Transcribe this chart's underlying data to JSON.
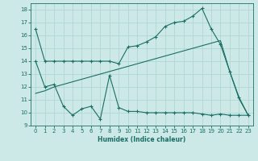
{
  "xlabel": "Humidex (Indice chaleur)",
  "bg_color": "#cce9e7",
  "line_color": "#1a6e64",
  "grid_color": "#b0d8d5",
  "xlim": [
    -0.5,
    23.5
  ],
  "ylim": [
    9,
    18.5
  ],
  "yticks": [
    9,
    10,
    11,
    12,
    13,
    14,
    15,
    16,
    17,
    18
  ],
  "xticks": [
    0,
    1,
    2,
    3,
    4,
    5,
    6,
    7,
    8,
    9,
    10,
    11,
    12,
    13,
    14,
    15,
    16,
    17,
    18,
    19,
    20,
    21,
    22,
    23
  ],
  "line1_x": [
    0,
    1,
    2,
    3,
    4,
    5,
    6,
    7,
    8,
    9,
    10,
    11,
    12,
    13,
    14,
    15,
    16,
    17,
    18,
    19,
    20,
    21,
    22,
    23
  ],
  "line1_y": [
    16.5,
    14.0,
    14.0,
    14.0,
    14.0,
    14.0,
    14.0,
    14.0,
    14.0,
    13.8,
    15.1,
    15.2,
    15.5,
    15.9,
    16.7,
    17.0,
    17.1,
    17.5,
    18.1,
    16.5,
    15.3,
    13.2,
    11.2,
    9.8
  ],
  "line2_x": [
    0,
    1,
    2,
    3,
    4,
    5,
    6,
    7,
    8,
    9,
    10,
    11,
    12,
    13,
    14,
    15,
    16,
    17,
    18,
    19,
    20,
    21,
    22,
    23
  ],
  "line2_y": [
    14.0,
    12.0,
    12.2,
    10.5,
    9.8,
    10.3,
    10.5,
    9.5,
    12.9,
    10.4,
    10.1,
    10.1,
    10.0,
    10.0,
    10.0,
    10.0,
    10.0,
    10.0,
    9.9,
    9.8,
    9.9,
    9.8,
    9.8,
    9.8
  ],
  "line3_x": [
    0,
    1,
    2,
    3,
    4,
    5,
    6,
    7,
    8,
    9,
    10,
    11,
    12,
    13,
    14,
    15,
    16,
    17,
    18,
    19,
    20,
    21,
    22,
    23
  ],
  "line3_y": [
    11.5,
    11.7,
    12.0,
    12.2,
    12.4,
    12.6,
    12.8,
    13.0,
    13.2,
    13.4,
    13.6,
    13.8,
    14.0,
    14.2,
    14.4,
    14.6,
    14.8,
    15.0,
    15.2,
    15.4,
    15.6,
    13.2,
    11.1,
    9.8
  ]
}
